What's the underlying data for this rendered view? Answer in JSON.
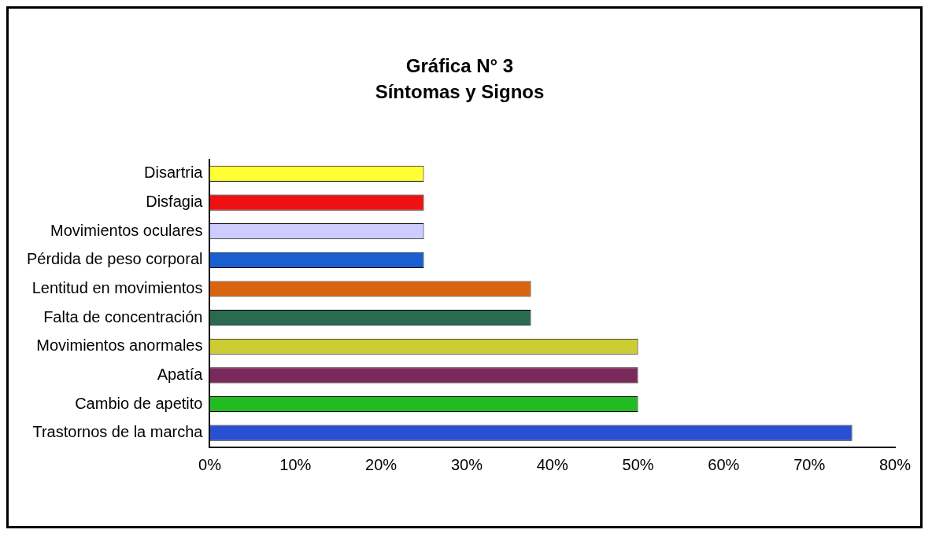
{
  "chart_data": {
    "type": "bar",
    "orientation": "horizontal",
    "title": "Gráfica N° 3",
    "subtitle": "Síntomas y Signos",
    "categories": [
      "Disartria",
      "Disfagia",
      "Movimientos oculares",
      "Pérdida de peso corporal",
      "Lentitud en movimientos",
      "Falta de concentración",
      "Movimientos anormales",
      "Apatía",
      "Cambio de apetito",
      "Trastornos de la marcha"
    ],
    "values": [
      25,
      25,
      25,
      25,
      37.5,
      37.5,
      50,
      50,
      50,
      75
    ],
    "colors": [
      "#ffff33",
      "#ee1111",
      "#ccccff",
      "#1a5fd0",
      "#d9650f",
      "#2a6a50",
      "#cccc33",
      "#7a2a5a",
      "#22bb22",
      "#2a4fd0"
    ],
    "xlim": [
      0,
      80
    ],
    "xticks": [
      {
        "value": 0,
        "label": "0%"
      },
      {
        "value": 10,
        "label": "10%"
      },
      {
        "value": 20,
        "label": "20%"
      },
      {
        "value": 30,
        "label": "30%"
      },
      {
        "value": 40,
        "label": "40%"
      },
      {
        "value": 50,
        "label": "50%"
      },
      {
        "value": 60,
        "label": "60%"
      },
      {
        "value": 70,
        "label": "70%"
      },
      {
        "value": 80,
        "label": "80%"
      }
    ],
    "grid": false,
    "legend": false
  }
}
